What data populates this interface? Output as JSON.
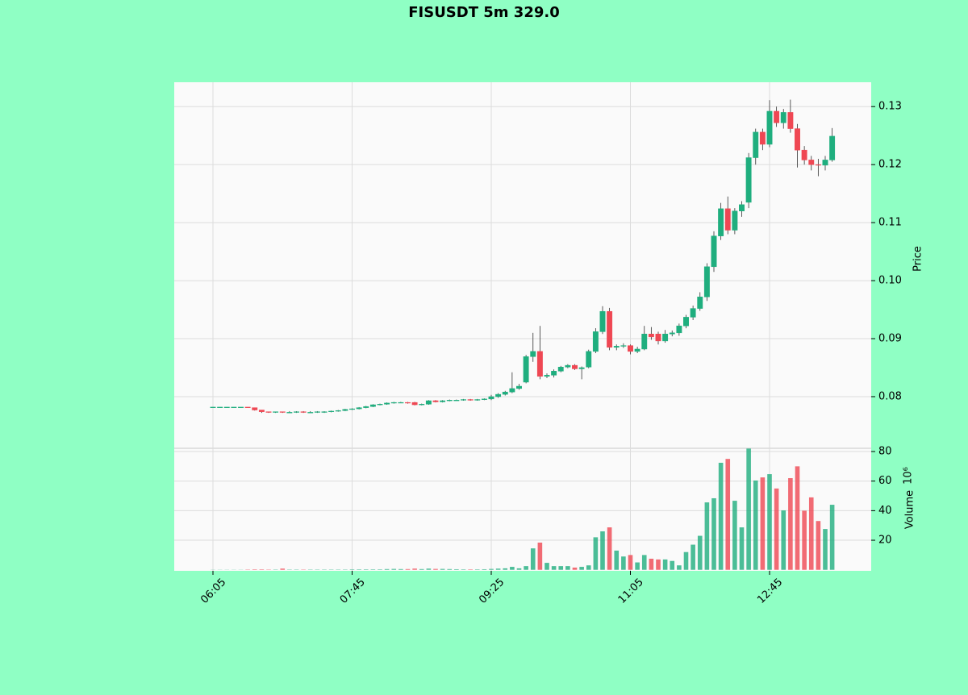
{
  "chart_data": {
    "type": "candlestick",
    "title": "FISUSDT 5m 329.0",
    "ylabel": "Price",
    "volume_label": "Volume",
    "volume_scale_label": "10⁶",
    "up_color": "#1fae7e",
    "down_color": "#ef4753",
    "grid": true,
    "x": [
      "06:05",
      "06:10",
      "06:15",
      "06:20",
      "06:25",
      "06:30",
      "06:35",
      "06:40",
      "06:45",
      "06:50",
      "06:55",
      "07:00",
      "07:05",
      "07:10",
      "07:15",
      "07:20",
      "07:25",
      "07:30",
      "07:35",
      "07:40",
      "07:45",
      "07:50",
      "07:55",
      "08:00",
      "08:05",
      "08:10",
      "08:15",
      "08:20",
      "08:25",
      "08:30",
      "08:35",
      "08:40",
      "08:45",
      "08:50",
      "08:55",
      "09:00",
      "09:05",
      "09:10",
      "09:15",
      "09:20",
      "09:25",
      "09:30",
      "09:35",
      "09:40",
      "09:45",
      "09:50",
      "09:55",
      "10:00",
      "10:05",
      "10:10",
      "10:15",
      "10:20",
      "10:25",
      "10:30",
      "10:35",
      "10:40",
      "10:45",
      "10:50",
      "10:55",
      "11:00",
      "11:05",
      "11:10",
      "11:15",
      "11:20",
      "11:25",
      "11:30",
      "11:35",
      "11:40",
      "11:45",
      "11:50",
      "11:55",
      "12:00",
      "12:05",
      "12:10",
      "12:15",
      "12:20",
      "12:25",
      "12:30",
      "12:35",
      "12:40",
      "12:45",
      "12:50",
      "12:55",
      "13:00",
      "13:05",
      "13:10",
      "13:15",
      "13:20",
      "13:25",
      "13:30"
    ],
    "xticks": [
      "06:05",
      "07:45",
      "09:25",
      "11:05",
      "12:45"
    ],
    "open": [
      0.0782,
      0.0782,
      0.0782,
      0.0782,
      0.0782,
      0.0782,
      0.0781,
      0.0777,
      0.0774,
      0.0773,
      0.0774,
      0.0773,
      0.0773,
      0.0774,
      0.0773,
      0.0773,
      0.0774,
      0.0774,
      0.0775,
      0.0776,
      0.0778,
      0.0779,
      0.0781,
      0.0783,
      0.0786,
      0.0787,
      0.0789,
      0.079,
      0.079,
      0.079,
      0.0786,
      0.0787,
      0.0793,
      0.0791,
      0.0793,
      0.0794,
      0.0794,
      0.0795,
      0.0794,
      0.0795,
      0.0796,
      0.08,
      0.0804,
      0.0808,
      0.0814,
      0.0825,
      0.0869,
      0.0878,
      0.0835,
      0.0837,
      0.0844,
      0.0851,
      0.0854,
      0.0848,
      0.0851,
      0.0878,
      0.0912,
      0.0947,
      0.0885,
      0.0887,
      0.0888,
      0.0878,
      0.0882,
      0.0908,
      0.0908,
      0.0896,
      0.0908,
      0.091,
      0.0922,
      0.0937,
      0.0952,
      0.0972,
      0.1024,
      0.1077,
      0.1124,
      0.1087,
      0.112,
      0.1135,
      0.1212,
      0.1256,
      0.1235,
      0.1292,
      0.1272,
      0.129,
      0.1262,
      0.1225,
      0.1208,
      0.12,
      0.1199,
      0.1208
    ],
    "high": [
      0.0782,
      0.0782,
      0.0782,
      0.0782,
      0.0782,
      0.0782,
      0.0781,
      0.0777,
      0.0774,
      0.0774,
      0.0774,
      0.0775,
      0.0775,
      0.0775,
      0.0775,
      0.0775,
      0.0775,
      0.0776,
      0.0777,
      0.0779,
      0.078,
      0.0782,
      0.0784,
      0.0787,
      0.0788,
      0.079,
      0.0791,
      0.0791,
      0.0791,
      0.0791,
      0.0788,
      0.0794,
      0.0794,
      0.0794,
      0.0795,
      0.0795,
      0.0796,
      0.0796,
      0.0796,
      0.0797,
      0.0803,
      0.0806,
      0.081,
      0.0842,
      0.0822,
      0.0872,
      0.091,
      0.0922,
      0.084,
      0.0847,
      0.0853,
      0.0856,
      0.0856,
      0.0852,
      0.0881,
      0.0918,
      0.0956,
      0.0953,
      0.089,
      0.0892,
      0.089,
      0.0886,
      0.0922,
      0.092,
      0.0912,
      0.0915,
      0.0914,
      0.0926,
      0.0941,
      0.0957,
      0.098,
      0.103,
      0.1085,
      0.1134,
      0.1145,
      0.1125,
      0.1137,
      0.122,
      0.1262,
      0.1262,
      0.1311,
      0.13,
      0.1296,
      0.1312,
      0.127,
      0.1232,
      0.1215,
      0.121,
      0.1215,
      0.1263
    ],
    "low": [
      0.0782,
      0.0782,
      0.0782,
      0.0782,
      0.0782,
      0.0781,
      0.0776,
      0.0772,
      0.0772,
      0.0772,
      0.0772,
      0.0772,
      0.0772,
      0.0772,
      0.0772,
      0.0772,
      0.0772,
      0.0773,
      0.0774,
      0.0775,
      0.0777,
      0.0778,
      0.078,
      0.0782,
      0.0785,
      0.0786,
      0.0788,
      0.0789,
      0.0788,
      0.0785,
      0.0785,
      0.0786,
      0.079,
      0.079,
      0.0792,
      0.0793,
      0.0793,
      0.0793,
      0.0793,
      0.0794,
      0.0794,
      0.0798,
      0.0802,
      0.0806,
      0.0812,
      0.0823,
      0.086,
      0.083,
      0.0832,
      0.0833,
      0.0842,
      0.0849,
      0.0846,
      0.083,
      0.0849,
      0.0875,
      0.0908,
      0.088,
      0.088,
      0.0884,
      0.0873,
      0.0875,
      0.088,
      0.0898,
      0.089,
      0.0893,
      0.0904,
      0.0905,
      0.0918,
      0.0932,
      0.0948,
      0.0965,
      0.1015,
      0.107,
      0.108,
      0.108,
      0.111,
      0.1125,
      0.12,
      0.1225,
      0.123,
      0.1265,
      0.1262,
      0.1255,
      0.1195,
      0.12,
      0.119,
      0.118,
      0.119,
      0.1205
    ],
    "close": [
      0.0782,
      0.0782,
      0.0782,
      0.0782,
      0.0782,
      0.0781,
      0.0777,
      0.0774,
      0.0773,
      0.0774,
      0.0773,
      0.0773,
      0.0774,
      0.0773,
      0.0773,
      0.0774,
      0.0774,
      0.0775,
      0.0776,
      0.0778,
      0.0779,
      0.0781,
      0.0783,
      0.0786,
      0.0787,
      0.0789,
      0.079,
      0.079,
      0.0789,
      0.0786,
      0.0787,
      0.0793,
      0.0791,
      0.0793,
      0.0794,
      0.0794,
      0.0795,
      0.0794,
      0.0795,
      0.0796,
      0.08,
      0.0804,
      0.0808,
      0.0814,
      0.0818,
      0.0869,
      0.0878,
      0.0835,
      0.0837,
      0.0844,
      0.0851,
      0.0854,
      0.0848,
      0.085,
      0.0878,
      0.0912,
      0.0947,
      0.0885,
      0.0887,
      0.0888,
      0.0878,
      0.0882,
      0.0908,
      0.0903,
      0.0896,
      0.0908,
      0.091,
      0.0922,
      0.0937,
      0.0952,
      0.0972,
      0.1024,
      0.1077,
      0.1124,
      0.1087,
      0.112,
      0.1131,
      0.1212,
      0.1256,
      0.1235,
      0.1292,
      0.1272,
      0.129,
      0.1262,
      0.1225,
      0.1208,
      0.12,
      0.1199,
      0.1208,
      0.1249
    ],
    "volume": [
      0.1,
      0.1,
      0.1,
      0.1,
      0.1,
      0.2,
      0.3,
      0.3,
      0.2,
      0.2,
      0.8,
      0.2,
      0.2,
      0.2,
      0.2,
      0.2,
      0.2,
      0.2,
      0.2,
      0.2,
      0.3,
      0.3,
      0.3,
      0.3,
      0.3,
      0.5,
      0.6,
      0.5,
      0.5,
      0.8,
      0.5,
      0.8,
      0.6,
      0.6,
      0.5,
      0.4,
      0.3,
      0.3,
      0.3,
      0.4,
      0.6,
      0.8,
      1,
      2,
      1,
      2.5,
      14.5,
      18.4,
      4.7,
      2.5,
      2.5,
      2.5,
      1.5,
      2,
      3,
      22,
      26,
      28.7,
      13,
      9,
      10,
      5,
      10,
      7.5,
      7,
      7,
      6,
      3,
      12,
      17,
      23,
      45.6,
      48.4,
      72.4,
      75,
      46.7,
      28.7,
      82,
      60.4,
      62.5,
      64.7,
      55,
      40.2,
      62,
      70,
      40,
      49,
      33,
      27.6,
      44
    ],
    "ylim": [
      0.0711,
      0.1342
    ],
    "yticks": [
      0.08,
      0.09,
      {
        "value": 0.1,
        "label": "0.10"
      },
      0.11,
      0.12,
      0.13
    ],
    "vlim": [
      -0.7,
      82.2
    ],
    "vticks": [
      20,
      40,
      60,
      80
    ]
  }
}
